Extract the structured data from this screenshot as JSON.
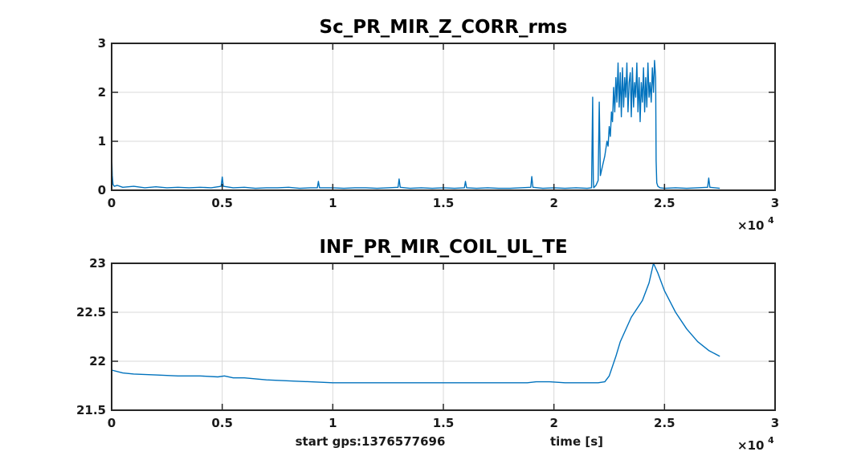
{
  "chart_data": [
    {
      "type": "line",
      "title": "Sc_PR_MIR_Z_CORR_rms",
      "xlim": [
        0,
        30000
      ],
      "ylim": [
        0,
        3
      ],
      "grid": true,
      "x_ticks": [
        0,
        5000,
        10000,
        15000,
        20000,
        25000,
        30000
      ],
      "x_tick_labels": [
        "0",
        "0.5",
        "1",
        "1.5",
        "2",
        "2.5",
        "3"
      ],
      "x_exponent_label": "×10",
      "x_exponent_power": "4",
      "y_ticks": [
        0,
        1,
        2,
        3
      ],
      "y_tick_labels": [
        "0",
        "1",
        "2",
        "3"
      ],
      "color": "#0072BD",
      "series": [
        {
          "x": [
            0,
            30,
            60,
            120,
            250,
            500,
            1000,
            1500,
            2000,
            2500,
            3000,
            3500,
            4000,
            4500,
            4950,
            5000,
            5050,
            5500,
            6000,
            6500,
            7000,
            7500,
            8000,
            8500,
            9000,
            9300,
            9350,
            9400,
            10000,
            10500,
            11000,
            11500,
            12000,
            12500,
            12950,
            13000,
            13050,
            13500,
            14000,
            14500,
            15000,
            15500,
            15950,
            16000,
            16050,
            16500,
            17000,
            17500,
            18000,
            18500,
            18950,
            19000,
            19050,
            19500,
            20000,
            20500,
            21000,
            21500,
            21700,
            21750,
            21780,
            21800,
            21900,
            22000,
            22050,
            22100,
            22200,
            22300,
            22400,
            22450,
            22500,
            22550,
            22600,
            22650,
            22700,
            22750,
            22800,
            22850,
            22900,
            22950,
            23000,
            23050,
            23100,
            23150,
            23200,
            23250,
            23300,
            23350,
            23400,
            23450,
            23500,
            23550,
            23600,
            23650,
            23700,
            23750,
            23800,
            23850,
            23900,
            23950,
            24000,
            24050,
            24100,
            24150,
            24200,
            24250,
            24300,
            24350,
            24400,
            24450,
            24500,
            24550,
            24600,
            24620,
            24650,
            24700,
            24800,
            25000,
            25500,
            26000,
            26500,
            26950,
            27000,
            27050,
            27500
          ],
          "y": [
            0.75,
            0.3,
            0.12,
            0.08,
            0.1,
            0.06,
            0.08,
            0.05,
            0.07,
            0.05,
            0.06,
            0.05,
            0.06,
            0.05,
            0.08,
            0.27,
            0.08,
            0.05,
            0.06,
            0.04,
            0.05,
            0.05,
            0.06,
            0.04,
            0.05,
            0.05,
            0.18,
            0.05,
            0.05,
            0.04,
            0.05,
            0.05,
            0.04,
            0.05,
            0.06,
            0.23,
            0.06,
            0.04,
            0.05,
            0.04,
            0.05,
            0.04,
            0.05,
            0.18,
            0.05,
            0.04,
            0.05,
            0.04,
            0.04,
            0.05,
            0.06,
            0.28,
            0.06,
            0.04,
            0.05,
            0.04,
            0.05,
            0.04,
            0.05,
            1.9,
            0.2,
            0.05,
            0.1,
            0.2,
            1.8,
            0.3,
            0.5,
            0.7,
            1.0,
            0.9,
            1.3,
            1.1,
            1.6,
            1.4,
            2.1,
            1.6,
            2.3,
            1.8,
            2.6,
            1.7,
            2.4,
            1.5,
            2.5,
            1.7,
            2.3,
            1.9,
            2.6,
            1.6,
            2.2,
            2.4,
            1.5,
            2.5,
            1.7,
            2.2,
            1.9,
            2.6,
            1.6,
            2.3,
            1.4,
            2.2,
            1.8,
            2.5,
            1.6,
            2.3,
            1.7,
            2.6,
            1.9,
            2.2,
            1.8,
            2.5,
            2.0,
            2.65,
            2.3,
            0.6,
            0.15,
            0.08,
            0.05,
            0.04,
            0.05,
            0.04,
            0.05,
            0.06,
            0.25,
            0.06,
            0.04
          ]
        }
      ]
    },
    {
      "type": "line",
      "title": "INF_PR_MIR_COIL_UL_TE",
      "xlim": [
        0,
        30000
      ],
      "ylim": [
        21.5,
        23
      ],
      "grid": true,
      "x_ticks": [
        0,
        5000,
        10000,
        15000,
        20000,
        25000,
        30000
      ],
      "x_tick_labels": [
        "0",
        "0.5",
        "1",
        "1.5",
        "2",
        "2.5",
        "3"
      ],
      "x_exponent_label": "×10",
      "x_exponent_power": "4",
      "y_ticks": [
        21.5,
        22,
        22.5,
        23
      ],
      "y_tick_labels": [
        "21.5",
        "22",
        "22.5",
        "23"
      ],
      "xlabel_left": "start gps:1376577696",
      "xlabel": "time [s]",
      "color": "#0072BD",
      "series": [
        {
          "x": [
            0,
            500,
            1000,
            2000,
            3000,
            4000,
            4800,
            5100,
            5500,
            6000,
            7000,
            8000,
            9000,
            10000,
            11000,
            12000,
            13000,
            14000,
            15000,
            16000,
            17000,
            18000,
            18800,
            19200,
            19800,
            20500,
            21500,
            22000,
            22300,
            22500,
            22800,
            23000,
            23500,
            24000,
            24300,
            24500,
            24700,
            25000,
            25500,
            26000,
            26500,
            27000,
            27500
          ],
          "y": [
            21.91,
            21.88,
            21.87,
            21.86,
            21.85,
            21.85,
            21.84,
            21.85,
            21.83,
            21.83,
            21.81,
            21.8,
            21.79,
            21.78,
            21.78,
            21.78,
            21.78,
            21.78,
            21.78,
            21.78,
            21.78,
            21.78,
            21.78,
            21.79,
            21.79,
            21.78,
            21.78,
            21.78,
            21.79,
            21.85,
            22.05,
            22.2,
            22.45,
            22.62,
            22.8,
            23.0,
            22.9,
            22.72,
            22.5,
            22.33,
            22.2,
            22.11,
            22.05
          ]
        }
      ]
    }
  ]
}
